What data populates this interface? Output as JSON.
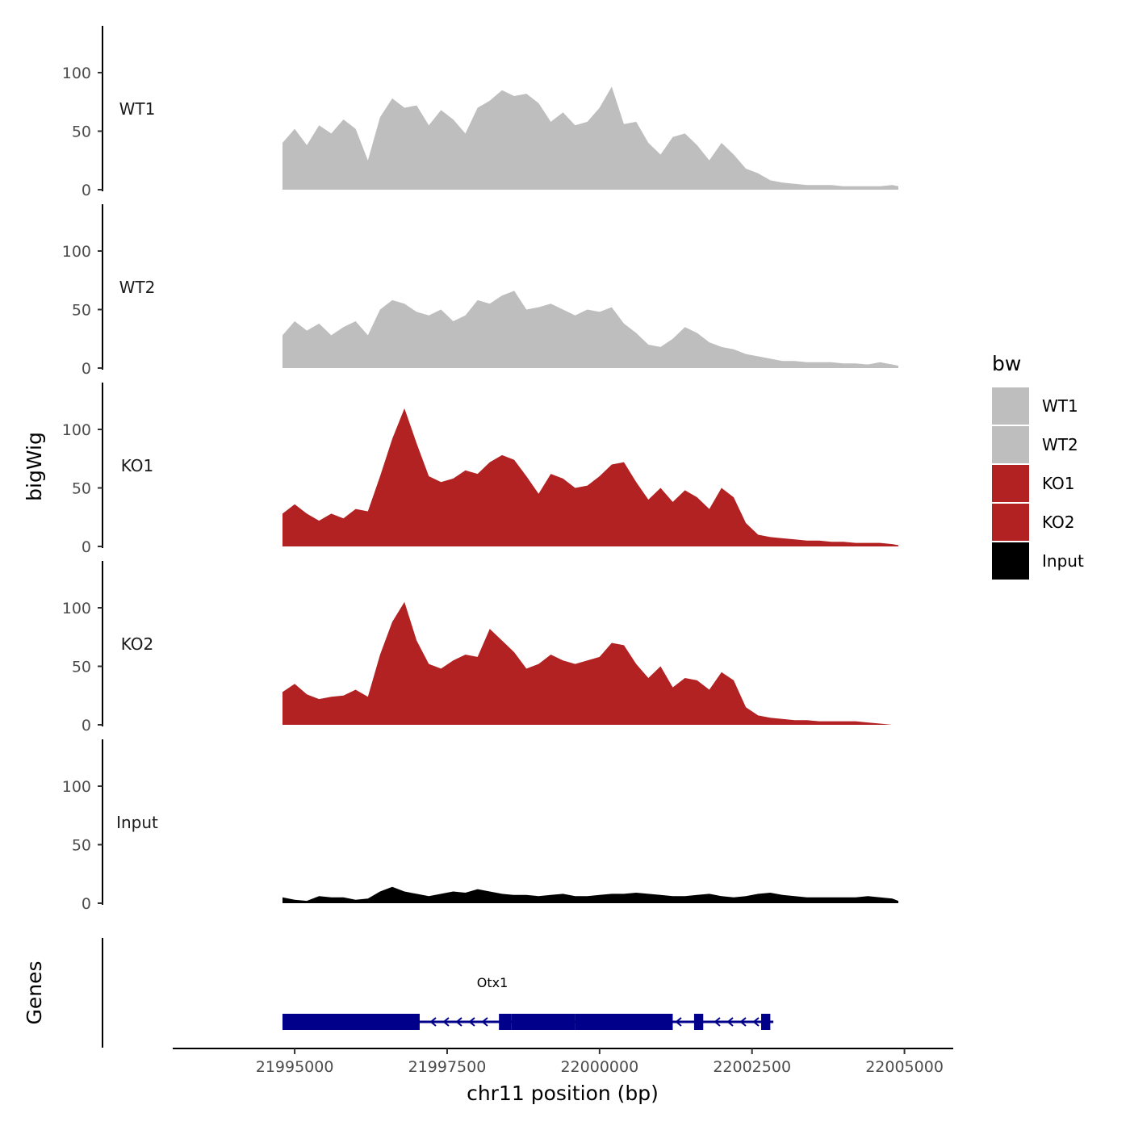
{
  "chart_data": {
    "type": "area",
    "title": "",
    "xlabel": "chr11 position (bp)",
    "ylabel": "bigWig",
    "genes_label": "Genes",
    "xlim": [
      21993000,
      22005800
    ],
    "x_ticks": [
      21995000,
      21997500,
      22000000,
      22002500,
      22005000
    ],
    "x_tick_labels": [
      "21995000",
      "21997500",
      "22000000",
      "22002500",
      "22005000"
    ],
    "ylim": [
      0,
      140
    ],
    "y_ticks": [
      0,
      50,
      100
    ],
    "y_tick_labels": [
      "0",
      "50",
      "100"
    ],
    "grid": false,
    "legend": {
      "title": "bw",
      "position": "right",
      "entries": [
        {
          "label": "WT1",
          "color": "#bebebe"
        },
        {
          "label": "WT2",
          "color": "#bebebe"
        },
        {
          "label": "KO1",
          "color": "#b22222"
        },
        {
          "label": "KO2",
          "color": "#b22222"
        },
        {
          "label": "Input",
          "color": "#000000"
        }
      ]
    },
    "x": [
      21994800,
      21995000,
      21995200,
      21995400,
      21995600,
      21995800,
      21996000,
      21996200,
      21996400,
      21996600,
      21996800,
      21997000,
      21997200,
      21997400,
      21997600,
      21997800,
      21998000,
      21998200,
      21998400,
      21998600,
      21998800,
      21999000,
      21999200,
      21999400,
      21999600,
      21999800,
      22000000,
      22000200,
      22000400,
      22000600,
      22000800,
      22001000,
      22001200,
      22001400,
      22001600,
      22001800,
      22002000,
      22002200,
      22002400,
      22002600,
      22002800,
      22003000,
      22003200,
      22003400,
      22003600,
      22003800,
      22004000,
      22004200,
      22004400,
      22004600,
      22004800,
      22004900
    ],
    "series": [
      {
        "name": "WT1",
        "color": "#bebebe",
        "values": [
          40,
          52,
          38,
          55,
          48,
          60,
          52,
          25,
          62,
          78,
          70,
          72,
          55,
          68,
          60,
          48,
          70,
          76,
          85,
          80,
          82,
          74,
          58,
          66,
          55,
          58,
          70,
          88,
          56,
          58,
          40,
          30,
          45,
          48,
          38,
          25,
          40,
          30,
          18,
          14,
          8,
          6,
          5,
          4,
          4,
          4,
          3,
          3,
          3,
          3,
          4,
          3
        ]
      },
      {
        "name": "WT2",
        "color": "#bebebe",
        "values": [
          28,
          40,
          32,
          38,
          28,
          35,
          40,
          28,
          50,
          58,
          55,
          48,
          45,
          50,
          40,
          45,
          58,
          55,
          62,
          66,
          50,
          52,
          55,
          50,
          45,
          50,
          48,
          52,
          38,
          30,
          20,
          18,
          25,
          35,
          30,
          22,
          18,
          16,
          12,
          10,
          8,
          6,
          6,
          5,
          5,
          5,
          4,
          4,
          3,
          5,
          3,
          2
        ]
      },
      {
        "name": "KO1",
        "color": "#b22222",
        "values": [
          28,
          36,
          28,
          22,
          28,
          24,
          32,
          30,
          60,
          92,
          118,
          88,
          60,
          55,
          58,
          65,
          62,
          72,
          78,
          74,
          60,
          45,
          62,
          58,
          50,
          52,
          60,
          70,
          72,
          55,
          40,
          50,
          38,
          48,
          42,
          32,
          50,
          42,
          20,
          10,
          8,
          7,
          6,
          5,
          5,
          4,
          4,
          3,
          3,
          3,
          2,
          1
        ]
      },
      {
        "name": "KO2",
        "color": "#b22222",
        "values": [
          28,
          35,
          26,
          22,
          24,
          25,
          30,
          24,
          60,
          88,
          105,
          72,
          52,
          48,
          55,
          60,
          58,
          82,
          72,
          62,
          48,
          52,
          60,
          55,
          52,
          55,
          58,
          70,
          68,
          52,
          40,
          50,
          32,
          40,
          38,
          30,
          45,
          38,
          15,
          8,
          6,
          5,
          4,
          4,
          3,
          3,
          3,
          3,
          2,
          1,
          0,
          0
        ]
      },
      {
        "name": "Input",
        "color": "#000000",
        "values": [
          5,
          3,
          2,
          6,
          5,
          5,
          3,
          4,
          10,
          14,
          10,
          8,
          6,
          8,
          10,
          9,
          12,
          10,
          8,
          7,
          7,
          6,
          7,
          8,
          6,
          6,
          7,
          8,
          8,
          9,
          8,
          7,
          6,
          6,
          7,
          8,
          6,
          5,
          6,
          8,
          9,
          7,
          6,
          5,
          5,
          5,
          5,
          5,
          6,
          5,
          4,
          2
        ]
      }
    ],
    "genes": [
      {
        "name": "Otx1",
        "start": 21994800,
        "end": 22002850,
        "strand": "-",
        "color": "#00008b",
        "exons": [
          [
            21994800,
            21997050
          ],
          [
            21998350,
            21998550
          ],
          [
            21998550,
            21999400
          ],
          [
            21999400,
            21999600
          ],
          [
            21999600,
            22001200
          ],
          [
            22001550,
            22001700
          ],
          [
            22002650,
            22002800
          ]
        ]
      }
    ]
  }
}
